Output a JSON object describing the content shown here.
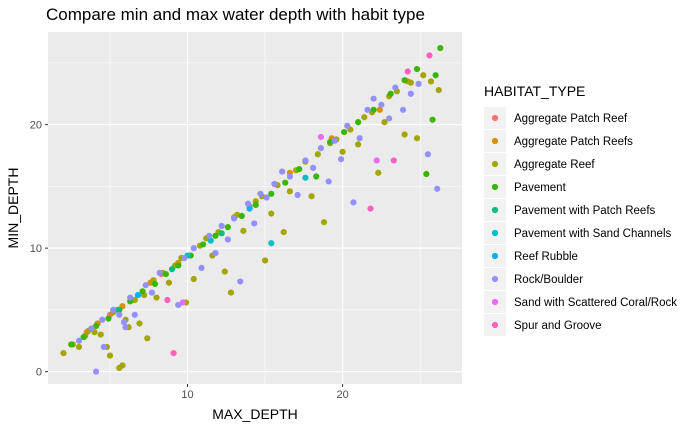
{
  "chart_data": {
    "type": "scatter",
    "title": "Compare min and max water depth with habit type",
    "xlabel": "MAX_DEPTH",
    "ylabel": "MIN_DEPTH",
    "xlim": [
      1.0,
      27.7
    ],
    "ylim": [
      -1.0,
      27.5
    ],
    "x_ticks": [
      10,
      20
    ],
    "y_ticks": [
      0,
      10,
      20
    ],
    "x_minor": [
      5,
      15,
      25
    ],
    "y_minor": [
      5,
      15,
      25
    ],
    "grid": true,
    "legend_position": "right",
    "legend_title": "HABITAT_TYPE",
    "series": [
      {
        "name": "Aggregate Patch Reef",
        "color": "#F8766D",
        "points": [
          [
            3.5,
            3.2
          ],
          [
            5.0,
            4.6
          ],
          [
            8.3,
            7.9
          ]
        ]
      },
      {
        "name": "Aggregate Patch Reefs",
        "color": "#D89000",
        "points": [
          [
            4.2,
            3.9
          ],
          [
            5.8,
            5.3
          ],
          [
            7.6,
            7.2
          ],
          [
            9.4,
            8.8
          ],
          [
            13.0,
            12.5
          ],
          [
            16.6,
            16.1
          ],
          [
            19.3,
            18.9
          ],
          [
            22.4,
            21.2
          ],
          [
            24.2,
            23.5
          ]
        ]
      },
      {
        "name": "Aggregate Reef",
        "color": "#A3A500",
        "points": [
          [
            2.0,
            1.5
          ],
          [
            2.6,
            2.2
          ],
          [
            3.0,
            2.0
          ],
          [
            3.4,
            2.9
          ],
          [
            3.6,
            3.3
          ],
          [
            4.0,
            3.2
          ],
          [
            4.4,
            3.0
          ],
          [
            4.8,
            2.0
          ],
          [
            5.0,
            1.3
          ],
          [
            5.2,
            4.8
          ],
          [
            5.6,
            0.3
          ],
          [
            5.8,
            0.5
          ],
          [
            6.0,
            4.2
          ],
          [
            6.2,
            3.6
          ],
          [
            6.6,
            5.8
          ],
          [
            6.9,
            3.9
          ],
          [
            7.2,
            6.2
          ],
          [
            7.4,
            2.7
          ],
          [
            7.8,
            7.4
          ],
          [
            8.0,
            6.0
          ],
          [
            8.4,
            8.0
          ],
          [
            8.8,
            7.2
          ],
          [
            9.2,
            8.6
          ],
          [
            9.6,
            9.2
          ],
          [
            9.9,
            5.6
          ],
          [
            10.2,
            9.4
          ],
          [
            10.4,
            7.5
          ],
          [
            10.8,
            10.2
          ],
          [
            11.2,
            10.8
          ],
          [
            11.6,
            9.4
          ],
          [
            12.0,
            11.3
          ],
          [
            12.4,
            8.1
          ],
          [
            12.8,
            6.4
          ],
          [
            13.2,
            12.7
          ],
          [
            13.6,
            11.4
          ],
          [
            14.0,
            13.4
          ],
          [
            14.4,
            13.8
          ],
          [
            14.8,
            14.2
          ],
          [
            15.0,
            9.0
          ],
          [
            15.4,
            12.8
          ],
          [
            15.8,
            15.1
          ],
          [
            16.2,
            11.3
          ],
          [
            16.6,
            14.6
          ],
          [
            17.0,
            16.3
          ],
          [
            17.6,
            17.0
          ],
          [
            18.0,
            14.2
          ],
          [
            18.4,
            17.6
          ],
          [
            18.8,
            12.1
          ],
          [
            19.2,
            18.5
          ],
          [
            19.6,
            18.8
          ],
          [
            20.0,
            17.8
          ],
          [
            20.5,
            19.6
          ],
          [
            21.0,
            18.4
          ],
          [
            21.4,
            20.6
          ],
          [
            21.9,
            21.0
          ],
          [
            22.3,
            16.1
          ],
          [
            22.7,
            20.2
          ],
          [
            23.0,
            22.3
          ],
          [
            23.5,
            22.7
          ],
          [
            24.0,
            19.2
          ],
          [
            24.4,
            23.4
          ],
          [
            24.8,
            18.9
          ],
          [
            25.2,
            24.0
          ],
          [
            25.7,
            23.5
          ],
          [
            26.2,
            22.8
          ]
        ]
      },
      {
        "name": "Pavement",
        "color": "#39B600",
        "points": [
          [
            2.5,
            2.2
          ],
          [
            3.3,
            2.8
          ],
          [
            4.1,
            3.7
          ],
          [
            4.9,
            4.3
          ],
          [
            5.6,
            5.0
          ],
          [
            6.3,
            5.7
          ],
          [
            7.1,
            6.5
          ],
          [
            7.9,
            7.1
          ],
          [
            8.6,
            7.9
          ],
          [
            9.4,
            8.6
          ],
          [
            10.2,
            9.4
          ],
          [
            11.0,
            10.3
          ],
          [
            11.8,
            11.0
          ],
          [
            12.6,
            11.7
          ],
          [
            13.5,
            12.6
          ],
          [
            14.4,
            13.5
          ],
          [
            15.4,
            14.4
          ],
          [
            16.3,
            15.3
          ],
          [
            17.2,
            16.4
          ],
          [
            18.3,
            15.8
          ],
          [
            19.2,
            18.6
          ],
          [
            20.1,
            19.4
          ],
          [
            21.0,
            20.2
          ],
          [
            22.0,
            21.2
          ],
          [
            23.1,
            22.5
          ],
          [
            24.0,
            23.6
          ],
          [
            24.8,
            24.5
          ],
          [
            25.4,
            16.0
          ],
          [
            25.8,
            20.4
          ],
          [
            26.0,
            24.0
          ],
          [
            26.3,
            26.2
          ]
        ]
      },
      {
        "name": "Pavement with Patch Reefs",
        "color": "#00BF7D",
        "points": [
          [
            5.5,
            5.0
          ],
          [
            9.0,
            8.3
          ],
          [
            12.2,
            11.2
          ]
        ]
      },
      {
        "name": "Pavement with Sand Channels",
        "color": "#00BFC4",
        "points": [
          [
            10.0,
            9.4
          ],
          [
            11.5,
            10.6
          ],
          [
            15.4,
            10.4
          ],
          [
            17.6,
            15.7
          ]
        ]
      },
      {
        "name": "Reef Rubble",
        "color": "#00B0F6",
        "points": [
          [
            6.8,
            6.2
          ],
          [
            14.0,
            13.2
          ]
        ]
      },
      {
        "name": "Rock/Boulder",
        "color": "#9590FF",
        "points": [
          [
            4.1,
            0.0
          ],
          [
            4.6,
            2.0
          ],
          [
            3.0,
            2.5
          ],
          [
            3.8,
            3.5
          ],
          [
            4.5,
            4.2
          ],
          [
            5.2,
            5.0
          ],
          [
            5.6,
            4.6
          ],
          [
            5.9,
            4.0
          ],
          [
            6.3,
            6.0
          ],
          [
            6.0,
            3.6
          ],
          [
            6.6,
            4.6
          ],
          [
            7.3,
            7.0
          ],
          [
            7.7,
            6.4
          ],
          [
            8.2,
            8.0
          ],
          [
            9.4,
            5.4
          ],
          [
            9.8,
            9.2
          ],
          [
            10.4,
            10.0
          ],
          [
            10.9,
            8.4
          ],
          [
            11.4,
            11.0
          ],
          [
            11.8,
            9.6
          ],
          [
            12.2,
            11.8
          ],
          [
            12.6,
            10.7
          ],
          [
            13.0,
            12.4
          ],
          [
            13.4,
            7.3
          ],
          [
            13.9,
            13.6
          ],
          [
            14.3,
            12.0
          ],
          [
            14.7,
            14.4
          ],
          [
            15.1,
            14.1
          ],
          [
            15.6,
            15.2
          ],
          [
            16.1,
            16.2
          ],
          [
            16.6,
            15.8
          ],
          [
            17.1,
            14.3
          ],
          [
            17.6,
            17.1
          ],
          [
            18.1,
            16.5
          ],
          [
            18.6,
            18.1
          ],
          [
            19.1,
            15.4
          ],
          [
            19.5,
            18.7
          ],
          [
            19.9,
            17.2
          ],
          [
            20.3,
            19.9
          ],
          [
            20.7,
            13.7
          ],
          [
            21.1,
            18.9
          ],
          [
            21.6,
            21.2
          ],
          [
            22.0,
            22.1
          ],
          [
            22.5,
            21.6
          ],
          [
            23.0,
            20.5
          ],
          [
            23.4,
            23.0
          ],
          [
            23.9,
            21.2
          ],
          [
            24.4,
            22.5
          ],
          [
            24.9,
            23.3
          ],
          [
            25.5,
            17.6
          ],
          [
            26.1,
            14.8
          ]
        ]
      },
      {
        "name": "Sand with Scattered Coral/Rock",
        "color": "#E76BF3",
        "points": [
          [
            9.7,
            5.6
          ],
          [
            18.6,
            19.0
          ],
          [
            22.2,
            17.1
          ]
        ]
      },
      {
        "name": "Spur and Groove",
        "color": "#FF62BC",
        "points": [
          [
            8.7,
            5.8
          ],
          [
            9.1,
            1.5
          ],
          [
            21.8,
            13.2
          ],
          [
            23.3,
            17.1
          ],
          [
            24.2,
            24.3
          ],
          [
            25.6,
            25.6
          ]
        ]
      }
    ]
  }
}
